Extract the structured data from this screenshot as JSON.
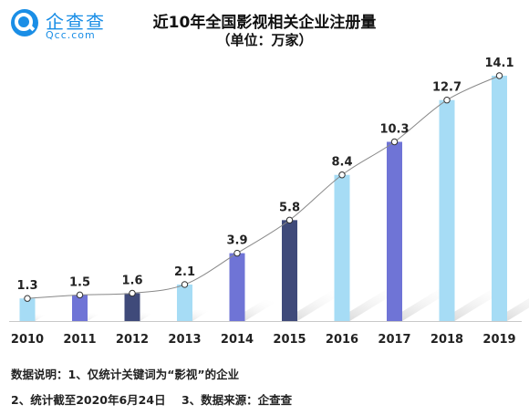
{
  "brand": {
    "name": "企查查",
    "domain": "Qcc.com",
    "color": "#1a8ee6"
  },
  "chart_data": {
    "type": "bar",
    "title": "近10年全国影视相关企业注册量",
    "subtitle": "（单位：万家）",
    "categories": [
      "2010",
      "2011",
      "2012",
      "2013",
      "2014",
      "2015",
      "2016",
      "2017",
      "2018",
      "2019"
    ],
    "values": [
      1.3,
      1.5,
      1.6,
      2.1,
      3.9,
      5.8,
      8.4,
      10.3,
      12.7,
      14.1
    ],
    "value_labels": [
      "1.3",
      "1.5",
      "1.6",
      "2.1",
      "3.9",
      "5.8",
      "8.4",
      "10.3",
      "12.7",
      "14.1"
    ],
    "bar_colors": [
      "#a6dcf5",
      "#6f74d6",
      "#3f4a7a",
      "#a6dcf5",
      "#6f74d6",
      "#3f4a7a",
      "#a6dcf5",
      "#6f74d6",
      "#a6dcf5",
      "#a6dcf5"
    ],
    "trend_line": true,
    "ylim": [
      0,
      15
    ],
    "grid": false,
    "xlabel": "",
    "ylabel": ""
  },
  "notes": {
    "line1": "数据说明：1、仅统计关键词为“影视”的企业",
    "line2": "2、统计截至2020年6月24日    3、数据来源：企查查"
  }
}
